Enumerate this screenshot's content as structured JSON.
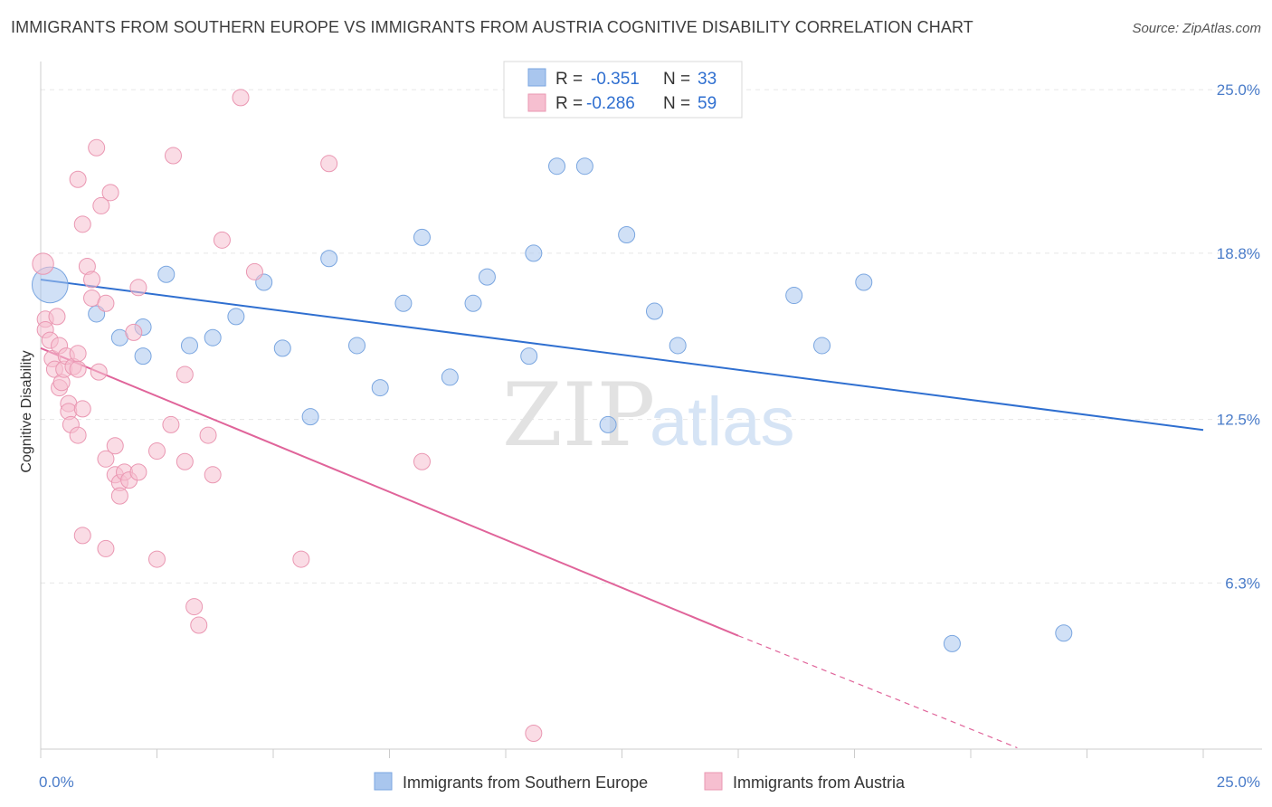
{
  "title": "IMMIGRANTS FROM SOUTHERN EUROPE VS IMMIGRANTS FROM AUSTRIA COGNITIVE DISABILITY CORRELATION CHART",
  "source": "Source: ZipAtlas.com",
  "watermark": {
    "zip": "ZIP",
    "atlas": "atlas"
  },
  "chart_data": {
    "type": "scatter",
    "title": "IMMIGRANTS FROM SOUTHERN EUROPE VS IMMIGRANTS FROM AUSTRIA COGNITIVE DISABILITY CORRELATION CHART",
    "xlabel": "",
    "ylabel": "Cognitive Disability",
    "xlim": [
      0,
      25
    ],
    "ylim": [
      0,
      26
    ],
    "x_tick_labels": [
      "0.0%",
      "25.0%"
    ],
    "y_ticks": [
      6.3,
      12.5,
      18.8,
      25.0
    ],
    "y_tick_labels": [
      "6.3%",
      "12.5%",
      "18.8%",
      "25.0%"
    ],
    "grid": true,
    "legend_placement": "top-center",
    "series": [
      {
        "name": "Immigrants from Southern Europe",
        "color": "#a9c6ee",
        "stroke": "#7aa6e0",
        "line_color": "#2f6fd0",
        "R": "-0.351",
        "N": "33",
        "trend": {
          "x0": 0,
          "y0": 17.8,
          "x1": 25,
          "y1": 12.1
        },
        "points": [
          [
            0.2,
            17.6,
            2.2
          ],
          [
            1.2,
            16.5,
            1
          ],
          [
            1.7,
            15.6,
            1
          ],
          [
            2.2,
            16.0,
            1
          ],
          [
            2.2,
            14.9,
            1
          ],
          [
            2.7,
            18.0,
            1
          ],
          [
            3.2,
            15.3,
            1
          ],
          [
            3.7,
            15.6,
            1
          ],
          [
            4.2,
            16.4,
            1
          ],
          [
            4.8,
            17.7,
            1
          ],
          [
            5.2,
            15.2,
            1
          ],
          [
            5.8,
            12.6,
            1
          ],
          [
            6.2,
            18.6,
            1
          ],
          [
            6.8,
            15.3,
            1
          ],
          [
            7.3,
            13.7,
            1
          ],
          [
            7.8,
            16.9,
            1
          ],
          [
            8.2,
            19.4,
            1
          ],
          [
            8.8,
            14.1,
            1
          ],
          [
            9.3,
            16.9,
            1
          ],
          [
            9.6,
            17.9,
            1
          ],
          [
            10.5,
            14.9,
            1
          ],
          [
            10.6,
            18.8,
            1
          ],
          [
            11.1,
            22.1,
            1
          ],
          [
            11.7,
            22.1,
            1
          ],
          [
            12.2,
            12.3,
            1
          ],
          [
            12.6,
            19.5,
            1
          ],
          [
            13.2,
            16.6,
            1
          ],
          [
            13.7,
            15.3,
            1
          ],
          [
            16.2,
            17.2,
            1
          ],
          [
            16.8,
            15.3,
            1
          ],
          [
            17.7,
            17.7,
            1
          ],
          [
            19.6,
            4.0,
            1
          ],
          [
            22.0,
            4.4,
            1
          ]
        ]
      },
      {
        "name": "Immigrants from Austria",
        "color": "#f6bfd0",
        "stroke": "#ea97b2",
        "line_color": "#e0649a",
        "R": "-0.286",
        "N": "59",
        "trend": {
          "x0": 0,
          "y0": 15.2,
          "x1": 15,
          "y1": 4.3
        },
        "trend_dashed": {
          "x0": 15,
          "y0": 4.3,
          "x1": 21,
          "y1": 0.05
        },
        "points": [
          [
            0.05,
            18.4,
            1.3
          ],
          [
            0.1,
            16.3,
            1
          ],
          [
            0.1,
            15.9,
            1
          ],
          [
            0.2,
            15.5,
            1
          ],
          [
            0.25,
            14.8,
            1
          ],
          [
            0.3,
            14.4,
            1
          ],
          [
            0.35,
            16.4,
            1
          ],
          [
            0.4,
            15.3,
            1
          ],
          [
            0.4,
            13.7,
            1
          ],
          [
            0.45,
            13.9,
            1
          ],
          [
            0.5,
            14.4,
            1
          ],
          [
            0.55,
            14.9,
            1
          ],
          [
            0.6,
            13.1,
            1
          ],
          [
            0.6,
            12.8,
            1
          ],
          [
            0.65,
            12.3,
            1
          ],
          [
            0.7,
            14.5,
            1
          ],
          [
            0.8,
            14.4,
            1
          ],
          [
            0.8,
            11.9,
            1
          ],
          [
            0.8,
            15.0,
            1
          ],
          [
            0.8,
            21.6,
            1
          ],
          [
            0.9,
            19.9,
            1
          ],
          [
            0.9,
            12.9,
            1
          ],
          [
            1.0,
            18.3,
            1
          ],
          [
            1.1,
            17.8,
            1
          ],
          [
            1.1,
            17.1,
            1
          ],
          [
            1.2,
            22.8,
            1
          ],
          [
            1.25,
            14.3,
            1
          ],
          [
            1.3,
            20.6,
            1
          ],
          [
            1.4,
            11.0,
            1
          ],
          [
            1.4,
            16.9,
            1
          ],
          [
            1.5,
            21.1,
            1
          ],
          [
            1.6,
            11.5,
            1
          ],
          [
            1.6,
            10.4,
            1
          ],
          [
            1.7,
            10.1,
            1
          ],
          [
            1.7,
            9.6,
            1
          ],
          [
            1.8,
            10.5,
            1
          ],
          [
            1.9,
            10.2,
            1
          ],
          [
            2.0,
            15.8,
            1
          ],
          [
            2.1,
            10.5,
            1
          ],
          [
            2.1,
            17.5,
            1
          ],
          [
            2.5,
            11.3,
            1
          ],
          [
            2.5,
            7.2,
            1
          ],
          [
            2.8,
            12.3,
            1
          ],
          [
            2.85,
            22.5,
            1
          ],
          [
            3.1,
            10.9,
            1
          ],
          [
            3.1,
            14.2,
            1
          ],
          [
            3.3,
            5.4,
            1
          ],
          [
            3.4,
            4.7,
            1
          ],
          [
            3.6,
            11.9,
            1
          ],
          [
            3.7,
            10.4,
            1
          ],
          [
            3.9,
            19.3,
            1
          ],
          [
            4.3,
            24.7,
            1
          ],
          [
            4.6,
            18.1,
            1
          ],
          [
            5.6,
            7.2,
            1
          ],
          [
            6.2,
            22.2,
            1
          ],
          [
            8.2,
            10.9,
            1
          ],
          [
            10.6,
            0.6,
            1
          ],
          [
            0.9,
            8.1,
            1
          ],
          [
            1.4,
            7.6,
            1
          ]
        ]
      }
    ]
  },
  "legend": {
    "r_label": "R =",
    "n_label": "N ="
  }
}
